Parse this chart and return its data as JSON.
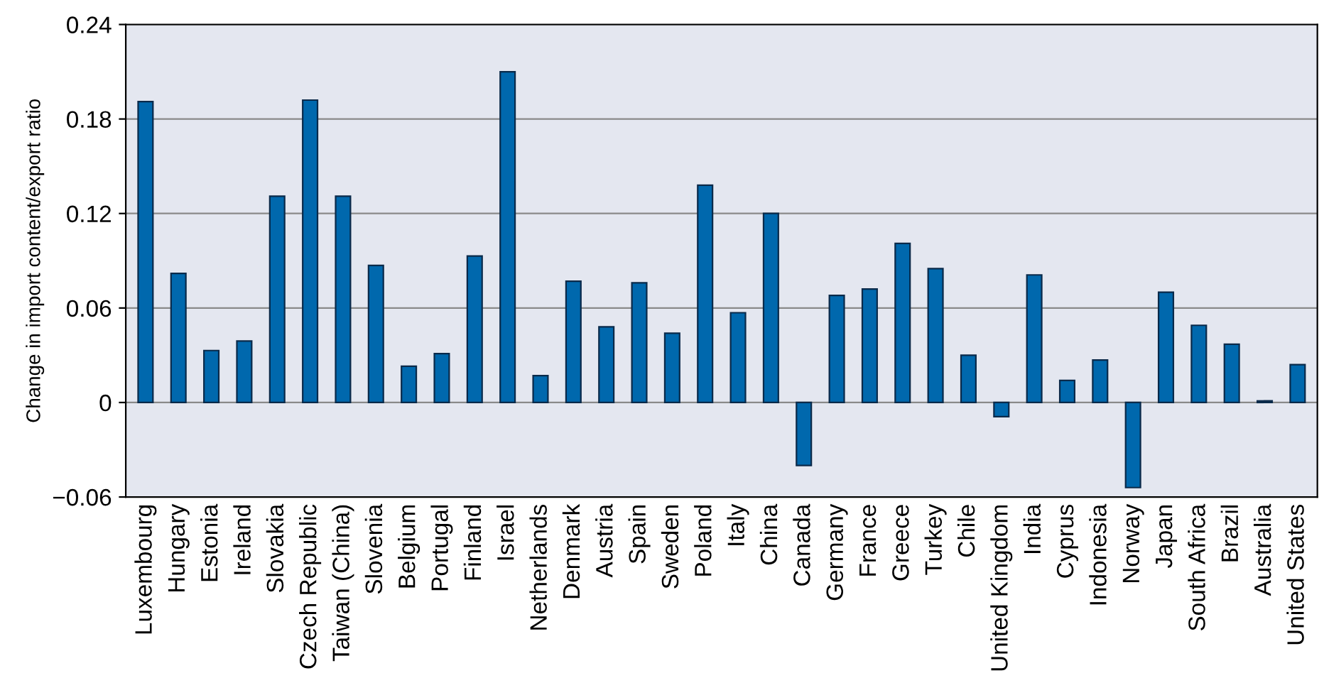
{
  "chart_data": {
    "type": "bar",
    "ylabel": "Change in import content/export ratio",
    "categories": [
      "Luxembourg",
      "Hungary",
      "Estonia",
      "Ireland",
      "Slovakia",
      "Czech Republic",
      "Taiwan (China)",
      "Slovenia",
      "Belgium",
      "Portugal",
      "Finland",
      "Israel",
      "Netherlands",
      "Denmark",
      "Austria",
      "Spain",
      "Sweden",
      "Poland",
      "Italy",
      "China",
      "Canada",
      "Germany",
      "France",
      "Greece",
      "Turkey",
      "Chile",
      "United Kingdom",
      "India",
      "Cyprus",
      "Indonesia",
      "Norway",
      "Japan",
      "South Africa",
      "Brazil",
      "Australia",
      "United States"
    ],
    "values": [
      0.191,
      0.082,
      0.033,
      0.039,
      0.131,
      0.192,
      0.131,
      0.087,
      0.023,
      0.031,
      0.093,
      0.21,
      0.017,
      0.077,
      0.048,
      0.076,
      0.044,
      0.138,
      0.057,
      0.12,
      -0.04,
      0.068,
      0.072,
      0.101,
      0.085,
      0.03,
      -0.009,
      0.081,
      0.014,
      0.027,
      -0.054,
      0.07,
      0.049,
      0.037,
      0.001,
      0.024
    ],
    "color": "#0068ad",
    "ylim": [
      -0.06,
      0.24
    ],
    "yticks": [
      {
        "value": -0.06,
        "label": "−0.06"
      },
      0,
      0.06,
      0.12,
      0.18,
      0.24
    ],
    "grid": "y"
  }
}
